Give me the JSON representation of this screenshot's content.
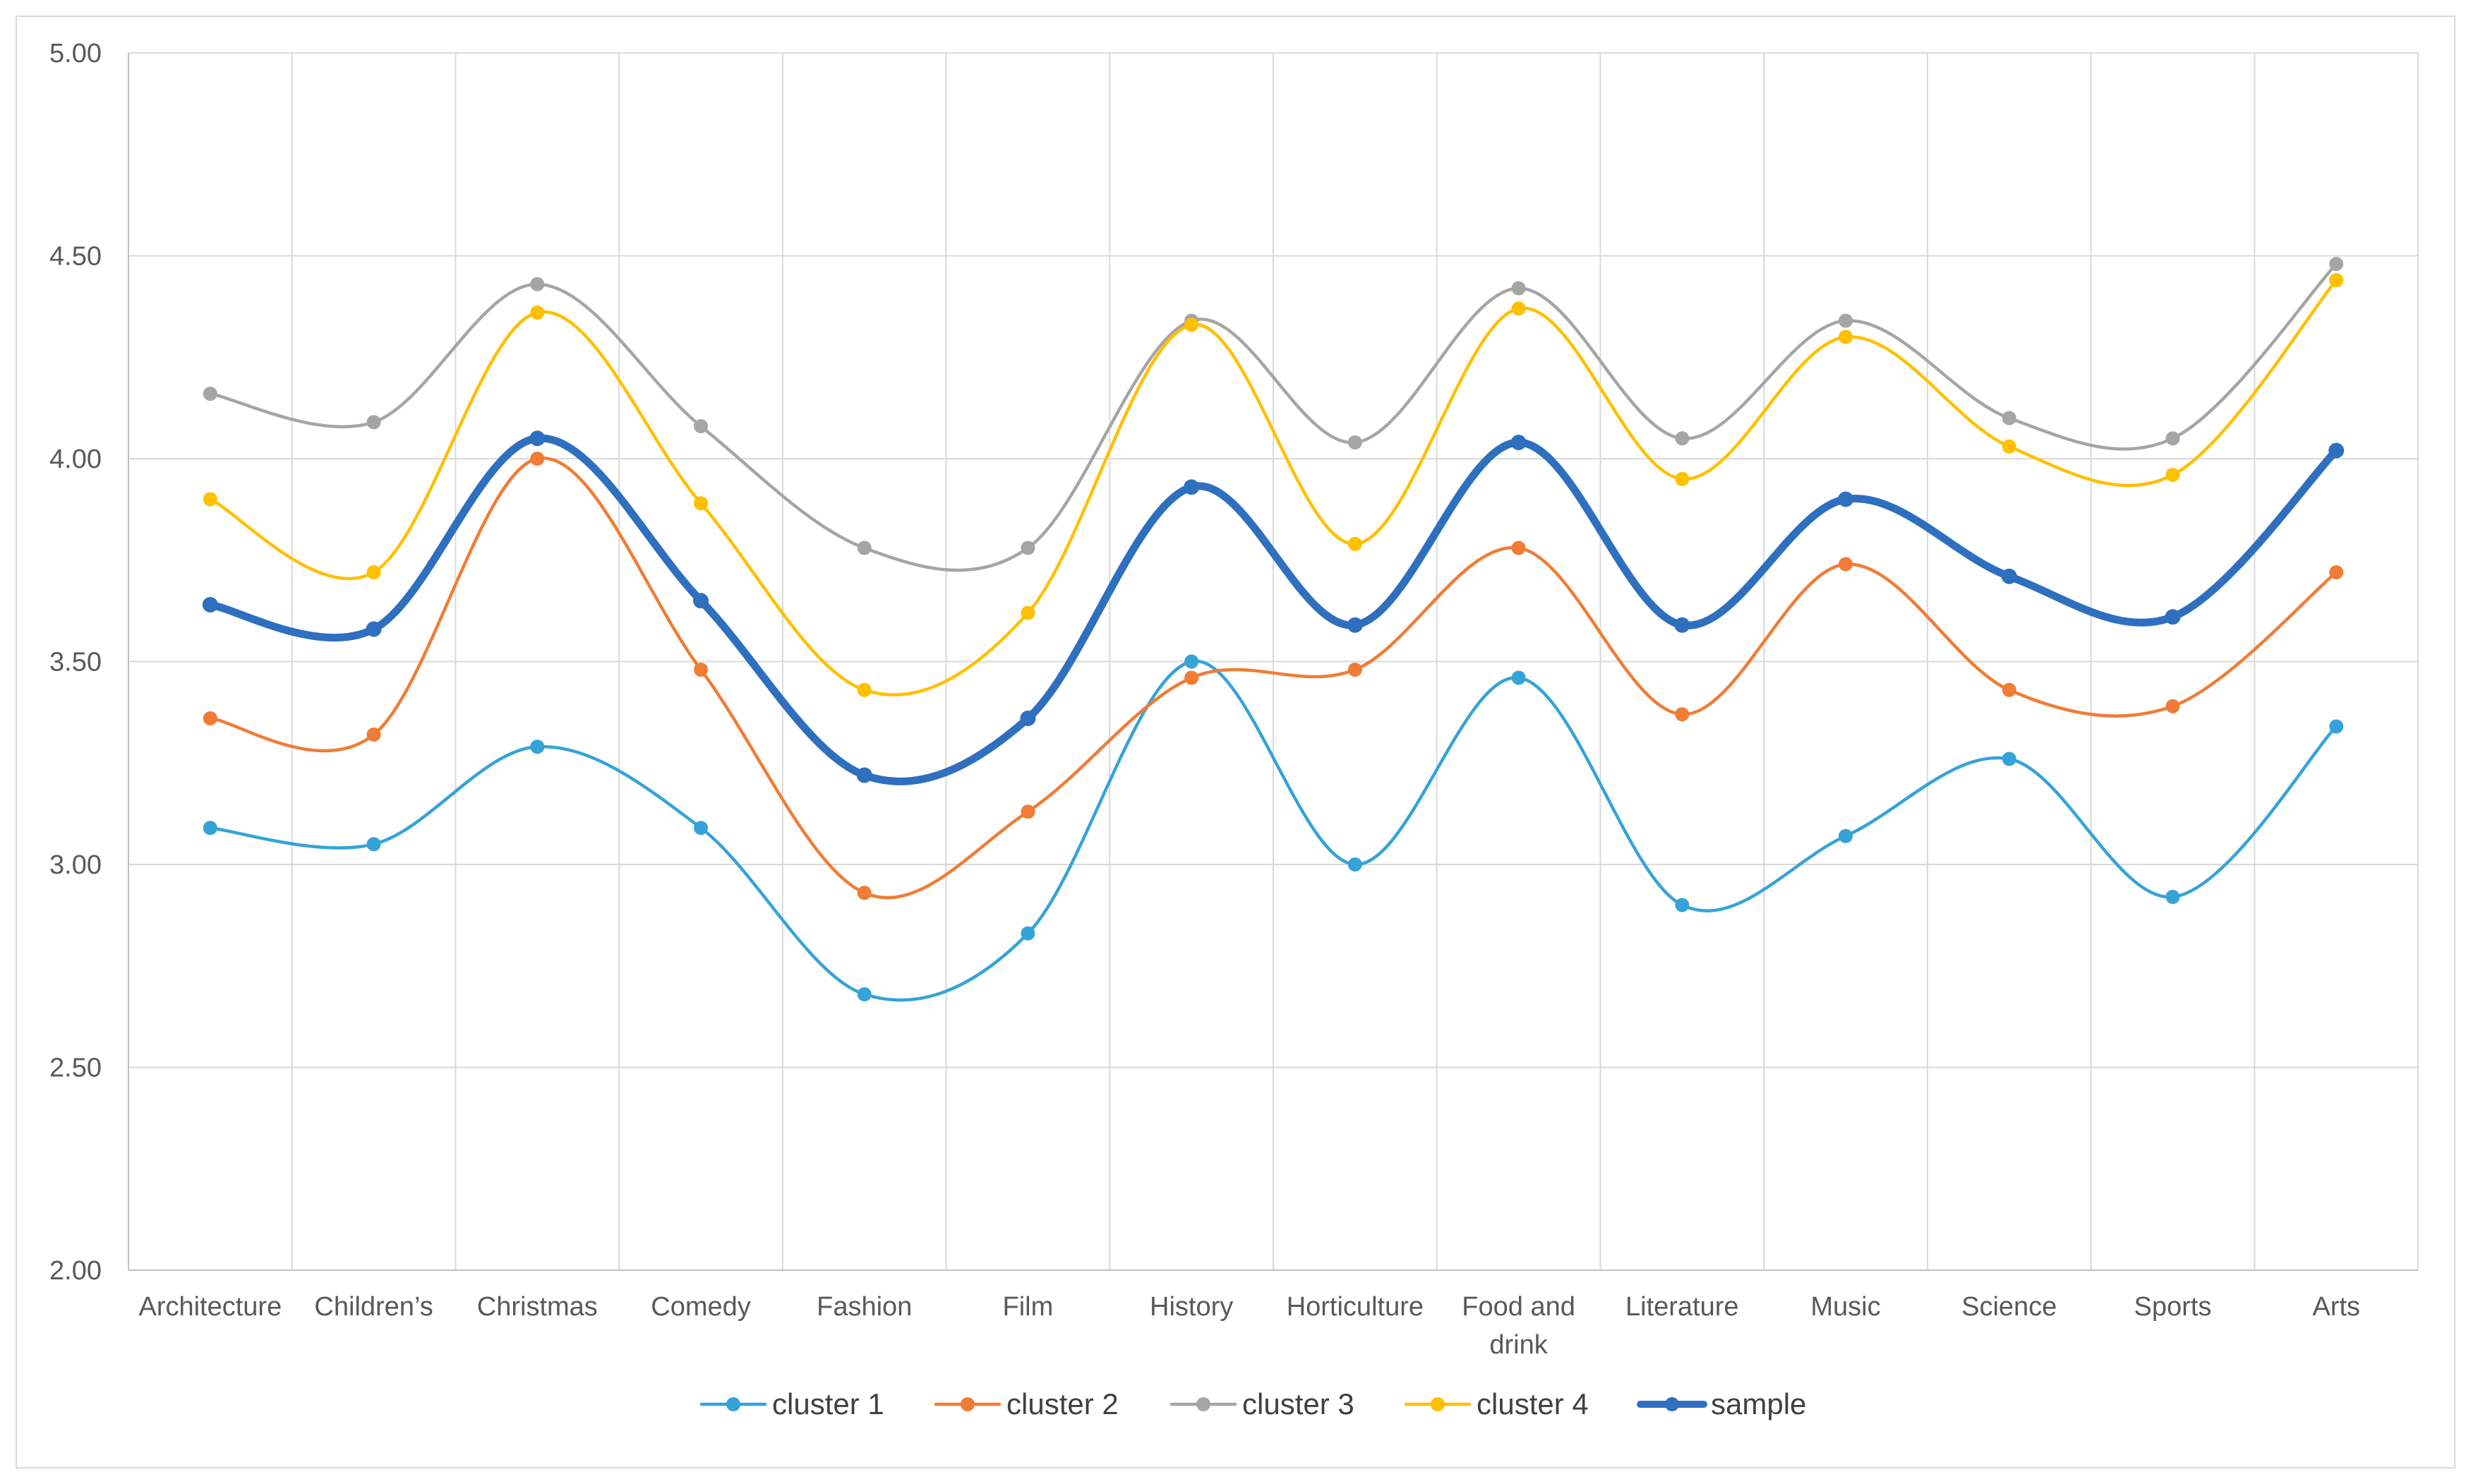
{
  "chart_data": {
    "type": "line",
    "title": "",
    "xlabel": "",
    "ylabel": "",
    "ylim": [
      2.0,
      5.0
    ],
    "ytick_step": 0.5,
    "ytick_labels": [
      "2.00",
      "2.50",
      "3.00",
      "3.50",
      "4.00",
      "4.50",
      "5.00"
    ],
    "grid": true,
    "smooth": true,
    "legend_position": "bottom",
    "categories": [
      [
        "Architecture"
      ],
      [
        "Children’s"
      ],
      [
        "Christmas"
      ],
      [
        "Comedy"
      ],
      [
        "Fashion"
      ],
      [
        "Film"
      ],
      [
        "History"
      ],
      [
        "Horticulture"
      ],
      [
        "Food and",
        "drink"
      ],
      [
        "Literature"
      ],
      [
        "Music"
      ],
      [
        "Science"
      ],
      [
        "Sports"
      ],
      [
        "Arts"
      ]
    ],
    "series": [
      {
        "name": "cluster 1",
        "color": "#35a3d8",
        "emphasis": false,
        "values": [
          3.09,
          3.05,
          3.29,
          3.09,
          2.68,
          2.83,
          3.5,
          3.0,
          3.46,
          2.9,
          3.07,
          3.26,
          2.92,
          3.34
        ]
      },
      {
        "name": "cluster 2",
        "color": "#f07c35",
        "emphasis": false,
        "values": [
          3.36,
          3.32,
          4.0,
          3.48,
          2.93,
          3.13,
          3.46,
          3.48,
          3.78,
          3.37,
          3.74,
          3.43,
          3.39,
          3.72
        ]
      },
      {
        "name": "cluster 3",
        "color": "#a5a5a5",
        "emphasis": false,
        "values": [
          4.16,
          4.09,
          4.43,
          4.08,
          3.78,
          3.78,
          4.34,
          4.04,
          4.42,
          4.05,
          4.34,
          4.1,
          4.05,
          4.48
        ]
      },
      {
        "name": "cluster 4",
        "color": "#ffc000",
        "emphasis": false,
        "values": [
          3.9,
          3.72,
          4.36,
          3.89,
          3.43,
          3.62,
          4.33,
          3.79,
          4.37,
          3.95,
          4.3,
          4.03,
          3.96,
          4.44
        ]
      },
      {
        "name": "sample",
        "color": "#2e6fbf",
        "emphasis": true,
        "values": [
          3.64,
          3.58,
          4.05,
          3.65,
          3.22,
          3.36,
          3.93,
          3.59,
          4.04,
          3.59,
          3.9,
          3.71,
          3.61,
          4.02
        ]
      }
    ]
  }
}
